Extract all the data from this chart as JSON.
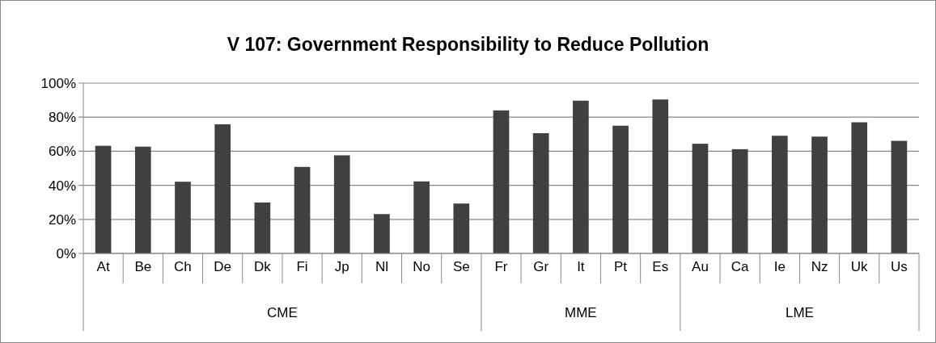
{
  "chart_data": {
    "type": "bar",
    "title": "V 107: Government Responsibility to Reduce Pollution",
    "categories": [
      "At",
      "Be",
      "Ch",
      "De",
      "Dk",
      "Fi",
      "Jp",
      "Nl",
      "No",
      "Se",
      "Fr",
      "Gr",
      "It",
      "Pt",
      "Es",
      "Au",
      "Ca",
      "Ie",
      "Nz",
      "Uk",
      "Us"
    ],
    "values": [
      63.2,
      62.7,
      42.1,
      75.8,
      29.9,
      50.8,
      57.6,
      23.1,
      42.3,
      29.3,
      84.0,
      70.6,
      89.7,
      75.0,
      90.4,
      64.4,
      61.2,
      69.1,
      68.6,
      77.0,
      66.1
    ],
    "color": "#404040",
    "ylim": [
      0,
      100
    ],
    "yticks": [
      {
        "value": 0,
        "label": "0%"
      },
      {
        "value": 20,
        "label": "20%"
      },
      {
        "value": 40,
        "label": "40%"
      },
      {
        "value": 60,
        "label": "60%"
      },
      {
        "value": 80,
        "label": "80%"
      },
      {
        "value": 100,
        "label": "100%"
      }
    ],
    "grid": "y",
    "annotations": [
      "CME",
      "MME",
      "LME"
    ]
  }
}
